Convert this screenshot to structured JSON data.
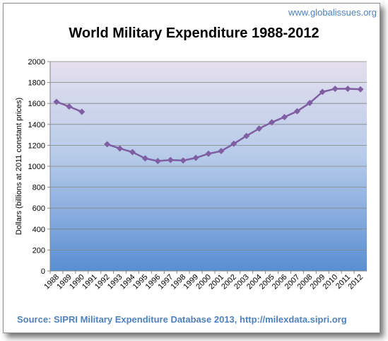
{
  "watermark": "www.globalissues.org",
  "source": "Source: SIPRI Military Expenditure Database 2013, http://milexdata.sipri.org",
  "chart_data": {
    "type": "line",
    "title": "World Military Expenditure 1988-2012",
    "xlabel": "",
    "ylabel": "Dollars (billions at 2011 constant prices)",
    "ylim": [
      0,
      2000
    ],
    "yticks": [
      0,
      200,
      400,
      600,
      800,
      1000,
      1200,
      1400,
      1600,
      1800,
      2000
    ],
    "grid": true,
    "legend": "none",
    "categories": [
      "1988",
      "1989",
      "1990",
      "1991",
      "1992",
      "1993",
      "1994",
      "1995",
      "1996",
      "1997",
      "1998",
      "1999",
      "2000",
      "2001",
      "2002",
      "2003",
      "2004",
      "2005",
      "2006",
      "2007",
      "2008",
      "2009",
      "2010",
      "2011",
      "2012"
    ],
    "series": [
      {
        "values": [
          1615,
          1570,
          1520,
          null,
          1210,
          1170,
          1135,
          1075,
          1050,
          1060,
          1055,
          1080,
          1120,
          1145,
          1215,
          1290,
          1360,
          1420,
          1470,
          1525,
          1605,
          1710,
          1740,
          1740,
          1735
        ],
        "color": "#7f5fa1"
      }
    ]
  }
}
